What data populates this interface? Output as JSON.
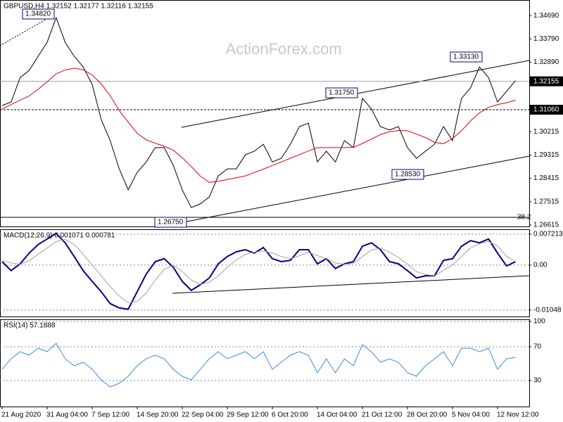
{
  "title": "GBPUSD,H4  1.32152 1.32177 1.32116 1.32155",
  "watermark": "ActionForex.com",
  "chart_data": [
    {
      "type": "line",
      "series": [
        {
          "name": "Price",
          "color": "#000000",
          "values": [
            1.3122,
            1.3136,
            1.323,
            1.3257,
            1.3312,
            1.3366,
            1.3461,
            1.3366,
            1.3312,
            1.3271,
            1.3203,
            1.3068,
            1.2987,
            1.2878,
            1.2797,
            1.2865,
            1.2905,
            1.296,
            1.296,
            1.2892,
            1.2797,
            1.2729,
            1.2743,
            1.277,
            1.2851,
            1.2878,
            1.2878,
            1.2932,
            1.2946,
            1.2973,
            1.2905,
            1.2919,
            1.2973,
            1.3041,
            1.3054,
            1.2905,
            1.2946,
            1.2905,
            1.2987,
            1.296,
            1.315,
            1.3109,
            1.3041,
            1.3028,
            1.3041,
            1.296,
            1.2919,
            1.2946,
            1.2973,
            1.3041,
            1.2987,
            1.315,
            1.319,
            1.3271,
            1.323,
            1.3136,
            1.3177,
            1.3218
          ]
        },
        {
          "name": "MA",
          "color": "#e00000",
          "values": [
            1.3109,
            1.3126,
            1.3143,
            1.3159,
            1.3185,
            1.3214,
            1.3244,
            1.3259,
            1.3266,
            1.326,
            1.324,
            1.3206,
            1.316,
            1.3103,
            1.3058,
            1.3015,
            1.299,
            1.2977,
            1.2965,
            1.295,
            1.2921,
            1.2887,
            1.285,
            1.2826,
            1.283,
            1.2837,
            1.2844,
            1.2851,
            1.2864,
            1.2877,
            1.2891,
            1.2905,
            1.2919,
            1.2933,
            1.2947,
            1.296,
            1.296,
            1.296,
            1.296,
            1.2961,
            1.2976,
            1.2993,
            1.301,
            1.3021,
            1.3026,
            1.3025,
            1.3012,
            1.2999,
            1.298,
            1.2975,
            1.2995,
            1.3025,
            1.3063,
            1.3094,
            1.3115,
            1.3126,
            1.3133,
            1.3143
          ]
        }
      ],
      "ylim": [
        1.2656,
        1.3529
      ],
      "yticks": [
        {
          "value": 1.3469,
          "label": "1.34690"
        },
        {
          "value": 1.3379,
          "label": "1.33790"
        },
        {
          "value": 1.3289,
          "label": "1.32890"
        },
        1.30215,
        1.29315,
        1.28415,
        1.27515,
        1.26615
      ],
      "current_price": 1.32155,
      "level": {
        "value": 1.3106,
        "label": "1.31060"
      },
      "annotations": [
        "1.34820",
        "1.31750",
        "1.33130",
        "1.28530",
        "1.26750",
        "38.2"
      ]
    },
    {
      "type": "line",
      "title": "MACD(12,26,9) 0.001071 0.000781",
      "series": [
        {
          "name": "MACD",
          "color": "#000080",
          "values": [
            0.0008,
            -0.0013,
            0.0003,
            0.0028,
            0.0048,
            0.0061,
            0.0074,
            0.0052,
            0.002,
            -0.0013,
            -0.0038,
            -0.0062,
            -0.009,
            -0.01,
            -0.0103,
            -0.0062,
            -0.0021,
            0.0008,
            0.0015,
            -0.0005,
            -0.0038,
            -0.0059,
            -0.0046,
            -0.003,
            0.0003,
            0.002,
            0.0031,
            0.0036,
            0.0028,
            0.0041,
            0.0015,
            0.0008,
            0.0011,
            0.0036,
            0.0036,
            0.0003,
            0.0015,
            -0.0008,
            0.0003,
            0.0008,
            0.0044,
            0.0052,
            0.0036,
            0.0008,
            0.0003,
            -0.0013,
            -0.003,
            -0.0025,
            -0.0025,
            0.0011,
            0.0015,
            0.0044,
            0.0057,
            0.0052,
            0.0061,
            0.0028,
            -0.0002,
            0.0008
          ]
        },
        {
          "name": "Signal",
          "color": "#a0a0a0",
          "values": [
            0.001,
            0.0005,
            0.0002,
            0.001,
            0.0025,
            0.004,
            0.0055,
            0.006,
            0.0048,
            0.0025,
            0.0,
            -0.0025,
            -0.005,
            -0.0072,
            -0.0088,
            -0.0085,
            -0.0065,
            -0.0035,
            -0.001,
            0.0,
            -0.0015,
            -0.0035,
            -0.0045,
            -0.004,
            -0.0025,
            -0.0005,
            0.0012,
            0.0025,
            0.003,
            0.0033,
            0.0028,
            0.002,
            0.0015,
            0.0022,
            0.003,
            0.0022,
            0.0015,
            0.0005,
            0.0002,
            0.0004,
            0.002,
            0.0035,
            0.004,
            0.003,
            0.0018,
            0.0002,
            -0.0015,
            -0.0022,
            -0.0025,
            -0.0012,
            0.0,
            0.002,
            0.004,
            0.005,
            0.0055,
            0.0045,
            0.002,
            0.0008
          ]
        }
      ],
      "ylim": [
        -0.012,
        0.00836
      ],
      "yticks": [
        0.007213,
        {
          "value": 0,
          "label": "0.00"
        },
        -0.01048
      ]
    },
    {
      "type": "line",
      "title": "RSI(14) 57.1888",
      "categories": [
        "21 Aug 2020",
        null,
        null,
        null,
        null,
        "31 Aug 04:00",
        null,
        null,
        null,
        null,
        "7 Sep 12:00",
        null,
        null,
        null,
        null,
        "14 Sep 20:00",
        null,
        null,
        null,
        null,
        "22 Sep 04:00",
        null,
        null,
        null,
        null,
        "29 Sep 12:00",
        null,
        null,
        null,
        null,
        "6 Oct 20:00",
        null,
        null,
        null,
        null,
        "14 Oct 04:00",
        null,
        null,
        null,
        null,
        "21 Oct 12:00",
        null,
        null,
        null,
        null,
        "28 Oct 20:00",
        null,
        null,
        null,
        null,
        "5 Nov 04:00",
        null,
        null,
        null,
        null,
        "12 Nov 12:00",
        null,
        null
      ],
      "series": [
        {
          "name": "RSI",
          "color": "#3c8be0",
          "values": [
            43.3,
            55.8,
            64.2,
            60,
            68.3,
            64.2,
            74.2,
            55.8,
            47.5,
            51.7,
            43.3,
            30.8,
            22.5,
            26.7,
            35,
            47.5,
            55.8,
            60,
            55.8,
            43.3,
            35,
            30.8,
            43.3,
            55.8,
            64.2,
            55.8,
            60,
            64.2,
            55.8,
            64.2,
            43.3,
            51.7,
            60,
            64.2,
            60,
            39.2,
            55.8,
            39.2,
            55.8,
            47.5,
            72.5,
            64.2,
            51.7,
            55.8,
            51.7,
            39.2,
            35,
            47.5,
            55.8,
            64.2,
            47.5,
            68.3,
            68.3,
            64.2,
            68.3,
            43.3,
            55.8,
            57.5
          ]
        }
      ],
      "ylim": [
        -0.8,
        102.5
      ],
      "yticks": [
        100,
        70,
        30
      ]
    }
  ]
}
